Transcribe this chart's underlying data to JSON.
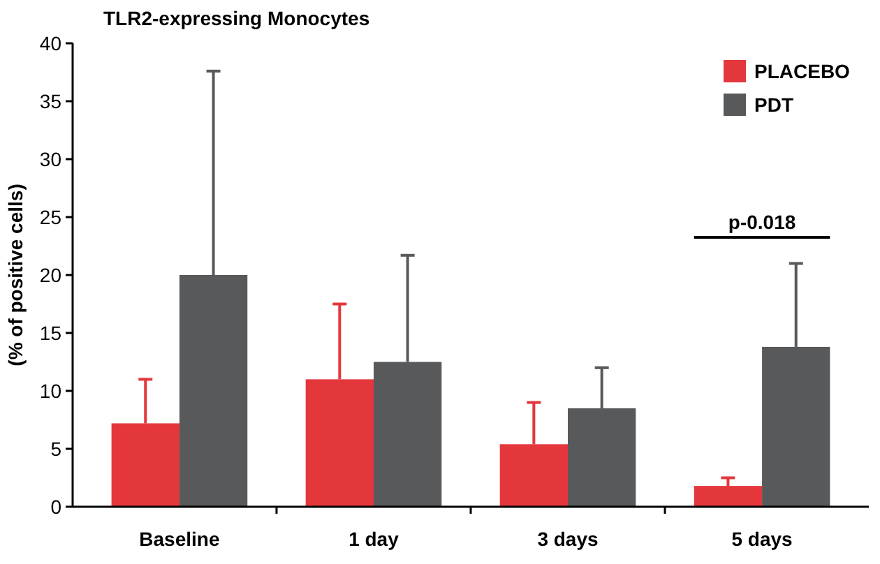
{
  "chart_data": {
    "type": "bar",
    "title": "TLR2-expressing Monocytes",
    "ylabel": "(% of positive cells)",
    "categories": [
      "Baseline",
      "1 day",
      "3 days",
      "5 days"
    ],
    "series": [
      {
        "name": "PLACEBO",
        "color": "#e3373c",
        "values": [
          7.2,
          11,
          5.4,
          1.8
        ],
        "errors": [
          [
            7.2,
            11
          ],
          [
            11,
            17.5
          ],
          [
            5.4,
            9
          ],
          [
            1.8,
            2.5
          ]
        ]
      },
      {
        "name": "PDT",
        "color": "#58595b",
        "values": [
          20,
          12.5,
          8.5,
          13.8
        ],
        "errors": [
          [
            20,
            37.6
          ],
          [
            12.5,
            21.7
          ],
          [
            8.5,
            12
          ],
          [
            13.8,
            21
          ]
        ]
      }
    ],
    "ylim": [
      0,
      40
    ],
    "yticks": [
      0,
      5,
      10,
      15,
      20,
      25,
      30,
      35,
      40
    ],
    "grid": false,
    "legend": "top right",
    "annotations": [
      "p-0.018"
    ]
  }
}
